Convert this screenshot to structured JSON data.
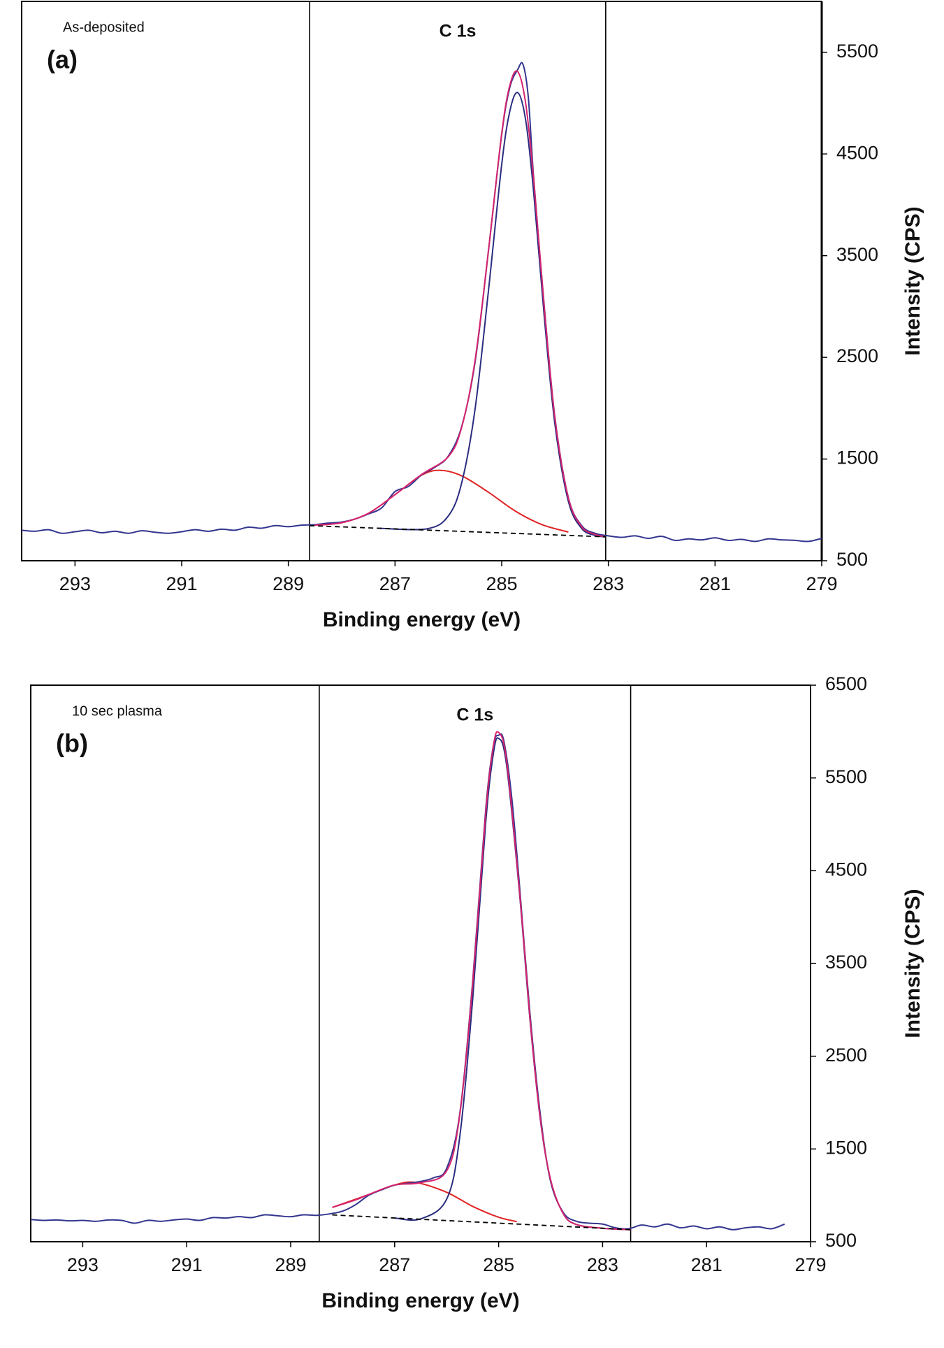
{
  "chart_data": [
    {
      "type": "line",
      "panel_label": "(a)",
      "sample": "As-deposited",
      "peak_label": "C 1s",
      "xlabel": "Binding energy (eV)",
      "ylabel": "Intensity (CPS)",
      "xlim": [
        294,
        279
      ],
      "xticks": [
        293,
        291,
        289,
        287,
        285,
        283,
        281,
        279
      ],
      "ylim": [
        500,
        6000
      ],
      "yticks": [
        500,
        1500,
        2500,
        3500,
        4500,
        5500
      ],
      "vlines": [
        288.6,
        283.05
      ],
      "series": [
        {
          "color": "#e02424",
          "style": "solid",
          "x": [
            288.5,
            288.0,
            287.5,
            287.0,
            286.5,
            286.15,
            285.75,
            285.25,
            284.75,
            284.25,
            283.75
          ],
          "values": [
            851,
            874,
            966,
            1150,
            1342,
            1389,
            1335,
            1174,
            990,
            856,
            782
          ]
        },
        {
          "color": "#2b2d80",
          "style": "solid",
          "x": [
            287.3,
            286.4,
            286.0,
            285.75,
            285.5,
            285.25,
            285.0,
            284.85,
            284.7,
            284.55,
            284.4,
            284.2,
            284.0,
            283.75,
            283.5,
            283.25,
            283.05
          ],
          "values": [
            819,
            814,
            941,
            1266,
            1988,
            3146,
            4395,
            4915,
            5103,
            4831,
            4121,
            2890,
            1834,
            1084,
            817,
            750,
            735
          ]
        },
        {
          "color": "#33358f",
          "style": "solid",
          "x": [
            294,
            293.75,
            293.5,
            293.25,
            293,
            292.75,
            292.5,
            292.25,
            292,
            291.75,
            291.5,
            291.25,
            291,
            290.75,
            290.5,
            290.25,
            290,
            289.75,
            289.5,
            289.25,
            289,
            288.75,
            288.5,
            288.25,
            288.0,
            287.75,
            287.5,
            287.25,
            287.0,
            286.75,
            286.5,
            286.25,
            286.0,
            285.75,
            285.5,
            285.25,
            285.0,
            284.85,
            284.7,
            284.6,
            284.5,
            284.4,
            284.2,
            284.0,
            283.75,
            283.5,
            283.25,
            283.0,
            282.75,
            282.5,
            282.25,
            282,
            281.75,
            281.5,
            281.25,
            281,
            280.75,
            280.5,
            280.25,
            280,
            279.75,
            279.5,
            279.25,
            279
          ],
          "values": [
            800,
            790,
            805,
            770,
            785,
            800,
            775,
            790,
            770,
            795,
            780,
            770,
            785,
            805,
            790,
            810,
            800,
            830,
            820,
            845,
            835,
            850,
            855,
            870,
            880,
            910,
            960,
            1020,
            1180,
            1230,
            1345,
            1420,
            1530,
            1820,
            2450,
            3540,
            4690,
            5150,
            5330,
            5380,
            5050,
            4260,
            2990,
            1900,
            1120,
            845,
            770,
            745,
            730,
            745,
            720,
            740,
            700,
            715,
            705,
            725,
            700,
            710,
            690,
            715,
            705,
            700,
            690,
            720
          ]
        },
        {
          "color": "#d6246e",
          "style": "solid",
          "x": [
            288.5,
            288.0,
            287.5,
            287.0,
            286.5,
            286.0,
            285.75,
            285.5,
            285.25,
            285.0,
            284.85,
            284.7,
            284.55,
            284.4,
            284.2,
            284.0,
            283.75,
            283.5,
            283.25,
            283.05
          ],
          "values": [
            851,
            874,
            966,
            1150,
            1349,
            1524,
            1813,
            2468,
            3542,
            4701,
            5170,
            5310,
            4996,
            4249,
            2979,
            1893,
            1117,
            835,
            759,
            735
          ]
        },
        {
          "color": "#000000",
          "style": "dashed",
          "x": [
            288.6,
            283.05
          ],
          "values": [
            845,
            735
          ]
        }
      ]
    },
    {
      "type": "line",
      "panel_label": "(b)",
      "sample": "10 sec plasma",
      "peak_label": "C 1s",
      "xlabel": "Binding energy (eV)",
      "ylabel": "Intensity (CPS)",
      "xlim": [
        294,
        279
      ],
      "xticks": [
        293,
        291,
        289,
        287,
        285,
        283,
        281,
        279
      ],
      "ylim": [
        500,
        6500
      ],
      "yticks": [
        500,
        1500,
        2500,
        3500,
        4500,
        5500,
        6500
      ],
      "vlines": [
        288.45,
        282.46
      ],
      "series": [
        {
          "color": "#e02424",
          "style": "solid",
          "x": [
            288.2,
            287.5,
            287.0,
            286.6,
            286.0,
            285.5,
            285.0,
            284.65
          ],
          "values": [
            870,
            1008,
            1112,
            1139,
            1033,
            881,
            764,
            717
          ]
        },
        {
          "color": "#2b2d80",
          "style": "solid",
          "x": [
            287.0,
            286.5,
            286.0,
            285.75,
            285.5,
            285.25,
            285.1,
            285.0,
            284.85,
            284.6,
            284.4,
            284.2,
            284.0,
            283.75,
            283.5,
            283.0,
            282.46
          ],
          "values": [
            755,
            746,
            958,
            1620,
            3107,
            5008,
            5767,
            5926,
            5650,
            4269,
            2915,
            1828,
            1164,
            797,
            685,
            645,
            630
          ]
        },
        {
          "color": "#33358f",
          "style": "solid",
          "x": [
            294,
            293.75,
            293.5,
            293.25,
            293,
            292.75,
            292.5,
            292.25,
            292,
            291.75,
            291.5,
            291.25,
            291,
            290.75,
            290.5,
            290.25,
            290,
            289.75,
            289.5,
            289.25,
            289,
            288.75,
            288.5,
            288.25,
            288.0,
            287.75,
            287.5,
            287.25,
            287.0,
            286.75,
            286.5,
            286.25,
            286.0,
            285.75,
            285.5,
            285.25,
            285.1,
            285.0,
            284.9,
            284.75,
            284.6,
            284.4,
            284.2,
            284.0,
            283.75,
            283.5,
            283.25,
            283.0,
            282.75,
            282.5,
            282.25,
            282,
            281.75,
            281.5,
            281.25,
            281,
            280.75,
            280.5,
            280.25,
            280,
            279.75,
            279.5
          ],
          "values": [
            740,
            730,
            735,
            725,
            730,
            720,
            735,
            730,
            700,
            730,
            720,
            735,
            745,
            730,
            760,
            755,
            770,
            760,
            790,
            780,
            770,
            790,
            785,
            800,
            830,
            900,
            1000,
            1060,
            1110,
            1130,
            1150,
            1190,
            1290,
            1870,
            3300,
            5150,
            5850,
            5960,
            5900,
            5300,
            4350,
            2980,
            1880,
            1150,
            810,
            720,
            700,
            690,
            650,
            640,
            680,
            660,
            690,
            650,
            670,
            640,
            660,
            630,
            650,
            660,
            640,
            690
          ]
        },
        {
          "color": "#d6246e",
          "style": "solid",
          "x": [
            288.2,
            287.75,
            287.5,
            287.0,
            286.5,
            286.0,
            285.75,
            285.5,
            285.25,
            285.1,
            285.0,
            284.85,
            284.6,
            284.4,
            284.2,
            284.0,
            283.75,
            283.5,
            283.0,
            282.46
          ],
          "values": [
            870,
            951,
            1008,
            1112,
            1137,
            1263,
            1856,
            3274,
            5116,
            5847,
            5990,
            5695,
            4292,
            2928,
            1835,
            1168,
            797,
            685,
            645,
            630
          ]
        },
        {
          "color": "#000000",
          "style": "dashed",
          "x": [
            288.2,
            282.46
          ],
          "values": [
            789,
            630
          ]
        }
      ]
    }
  ]
}
